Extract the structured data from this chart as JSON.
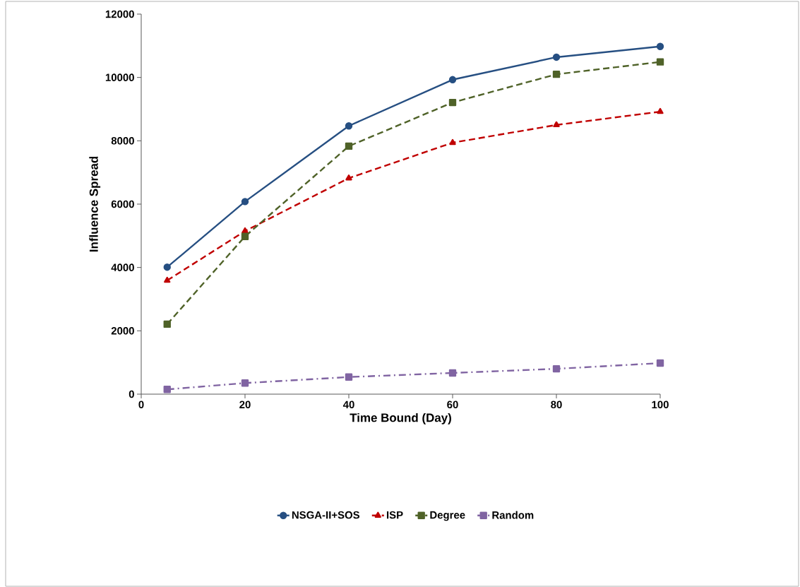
{
  "chart_data": {
    "type": "line",
    "xlabel": "Time Bound (Day)",
    "ylabel": "Influence Spread",
    "x": [
      5,
      20,
      40,
      60,
      80,
      100
    ],
    "series": [
      {
        "name": "NSGA-II+SOS",
        "color": "#264f82",
        "values": [
          4010,
          6080,
          8470,
          9930,
          10640,
          10980
        ],
        "marker": "circle",
        "line_style": "solid"
      },
      {
        "name": "ISP",
        "color": "#c00000",
        "values": [
          3590,
          5150,
          6820,
          7940,
          8500,
          8920
        ],
        "marker": "triangle",
        "line_style": "dashed"
      },
      {
        "name": "Degree",
        "color": "#4f6228",
        "values": [
          2210,
          4980,
          7830,
          9210,
          10100,
          10490
        ],
        "marker": "square",
        "line_style": "dashed"
      },
      {
        "name": "Random",
        "color": "#8064a2",
        "values": [
          150,
          350,
          540,
          670,
          800,
          980
        ],
        "marker": "square",
        "line_style": "dashdot"
      }
    ],
    "xlim": [
      0,
      100
    ],
    "xticks": [
      0,
      20,
      40,
      60,
      80,
      100
    ],
    "ylim": [
      0,
      12000
    ],
    "yticks": [
      0,
      2000,
      4000,
      6000,
      8000,
      10000,
      12000
    ],
    "grid": false,
    "legend": "bottom"
  }
}
